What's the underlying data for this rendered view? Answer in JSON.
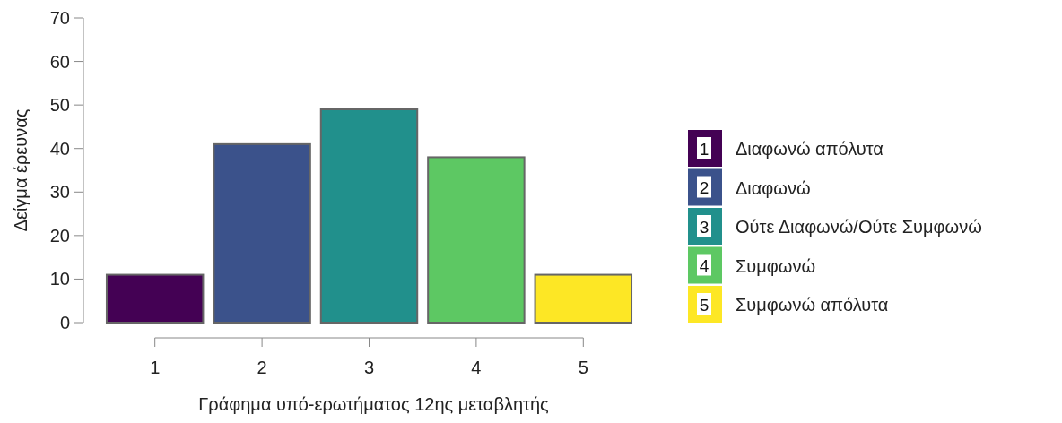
{
  "chart_data": {
    "type": "bar",
    "xlabel": "Γράφημα υπό-ερωτήματος 12ης μεταβλητής",
    "ylabel": "Δείγμα έρευνας",
    "categories": [
      "1",
      "2",
      "3",
      "4",
      "5"
    ],
    "series": [
      {
        "name": "Διαφωνώ απόλυτα",
        "color": "#440154",
        "values": [
          11,
          null,
          null,
          null,
          null
        ]
      },
      {
        "name": "Διαφωνώ",
        "color": "#3b528b",
        "values": [
          null,
          41,
          null,
          null,
          null
        ]
      },
      {
        "name": "Ούτε Διαφωνώ/Ούτε Συμφωνώ",
        "color": "#21908c",
        "values": [
          null,
          null,
          49,
          null,
          null
        ]
      },
      {
        "name": "Συμφωνώ",
        "color": "#5dc863",
        "values": [
          null,
          null,
          null,
          38,
          null
        ]
      },
      {
        "name": "Συμφωνώ απόλυτα",
        "color": "#fde725",
        "values": [
          null,
          null,
          null,
          null,
          11
        ]
      }
    ],
    "ylim": [
      0,
      70
    ],
    "yticks": [
      0,
      10,
      20,
      30,
      40,
      50,
      60,
      70
    ],
    "legend": "right"
  }
}
